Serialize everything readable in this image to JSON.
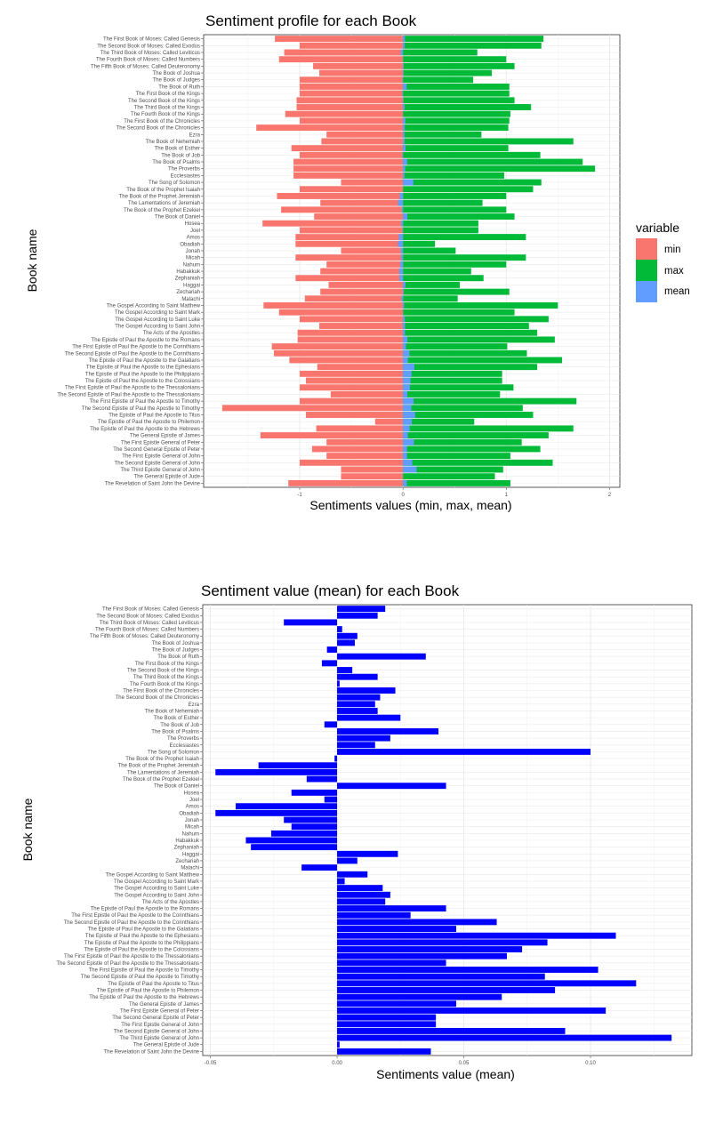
{
  "books": [
    "The First Book of Moses:  Called Genesis",
    "The Second Book of Moses:  Called Exodus",
    "The Third Book of Moses:  Called Leviticus",
    "The Fourth Book of Moses:  Called Numbers",
    "The Fifth Book of Moses:  Called Deuteronomy",
    "The Book of Joshua",
    "The Book of Judges",
    "The Book of Ruth",
    "The First Book of the Kings",
    "The Second Book of the Kings",
    "The Third Book of the Kings",
    "The Fourth Book of the Kings",
    "The First Book of the Chronicles",
    "The Second Book of the Chronicles",
    "Ezra",
    "The Book of Nehemiah",
    "The Book of Esther",
    "The Book of Job",
    "The Book of Psalms",
    "The Proverbs",
    "Ecclesiastes",
    "The Song of Solomon",
    "The Book of the Prophet Isaiah",
    "The Book of the Prophet Jeremiah",
    "The Lamentations of Jeremiah",
    "The Book of the Prophet Ezekiel",
    "The Book of Daniel",
    "Hosea",
    "Joel",
    "Amos",
    "Obadiah",
    "Jonah",
    "Micah",
    "Nahum",
    "Habakkuk",
    "Zephaniah",
    "Haggai",
    "Zechariah",
    "Malachi",
    "The Gospel According to Saint Matthew",
    "The Gospel According to Saint Mark",
    "The Gospel According to Saint Luke",
    "The Gospel According to Saint John",
    "The Acts of the Apostles",
    "The Epistle of Paul the Apostle to the Romans",
    "The First Epistle of Paul the Apostle to the Corinthians",
    "The Second Epistle of Paul the Apostle to the Corinthians",
    "The Epistle of Paul the Apostle to the Galatians",
    "The Epistle of Paul the Apostle to the Ephesians",
    "The Epistle of Paul the Apostle to the Philippians",
    "The Epistle of Paul the Apostle to the Colossians",
    "The First Epistle of Paul the Apostle to the Thessalonians",
    "The Second Epistle of Paul the Apostle to the Thessalonians",
    "The First Epistle of Paul the Apostle to Timothy",
    "The Second Epistle of Paul the Apostle to Timothy",
    "The Epistle of Paul the Apostle to Titus",
    "The Epistle of Paul the Apostle to Philemon",
    "The Epistle of Paul the Apostle to the Hebrews",
    "The General Epistle of James",
    "The First Epistle General of Peter",
    "The Second General Epistle of Peter",
    "The First Epistle General of John",
    "The Second Epistle General of John",
    "The Third Epistle General of John",
    "The General Epistle of Jude",
    "The Revelation of Saint John the Devine"
  ],
  "chart_data": [
    {
      "type": "bar",
      "orientation": "horizontal",
      "title": "Sentiment profile for each Book",
      "xlabel": "Sentiments values (min, max, mean)",
      "ylabel": "Book name",
      "xlim": [
        -1.93,
        2.1
      ],
      "x_ticks": [
        "-1",
        "0",
        "1",
        "2"
      ],
      "grid": true,
      "legend": {
        "title": "variable",
        "position": "right",
        "entries": [
          {
            "label": "min",
            "color": "#F8766D"
          },
          {
            "label": "max",
            "color": "#00BA38"
          },
          {
            "label": "mean",
            "color": "#619CFF"
          }
        ]
      },
      "categories_ref": "books",
      "series": [
        {
          "name": "min",
          "color": "#F8766D",
          "values": [
            -1.24,
            -1.0,
            -1.15,
            -1.2,
            -0.87,
            -0.81,
            -1.0,
            -1.0,
            -1.0,
            -1.03,
            -1.03,
            -1.14,
            -1.0,
            -1.42,
            -0.74,
            -0.79,
            -1.08,
            -1.0,
            -1.06,
            -1.06,
            -1.06,
            -0.6,
            -1.0,
            -1.22,
            -0.8,
            -1.18,
            -0.86,
            -1.36,
            -1.0,
            -1.04,
            -1.04,
            -0.6,
            -1.04,
            -0.74,
            -0.8,
            -1.04,
            -0.72,
            -0.8,
            -0.95,
            -1.35,
            -1.2,
            -1.0,
            -0.81,
            -1.02,
            -1.02,
            -1.27,
            -1.25,
            -1.1,
            -0.83,
            -1.0,
            -0.94,
            -1.0,
            -0.7,
            -1.0,
            -1.75,
            -0.94,
            -0.27,
            -0.84,
            -1.38,
            -0.74,
            -0.88,
            -0.74,
            -1.0,
            -0.6,
            -0.6,
            -1.11
          ]
        },
        {
          "name": "max",
          "color": "#00BA38",
          "values": [
            1.36,
            1.34,
            0.72,
            1.0,
            1.08,
            0.86,
            0.68,
            1.03,
            1.03,
            1.08,
            1.24,
            1.04,
            1.03,
            1.02,
            0.76,
            1.65,
            1.02,
            1.33,
            1.74,
            1.86,
            0.98,
            1.34,
            1.26,
            1.0,
            0.77,
            1.0,
            1.08,
            0.73,
            0.73,
            1.19,
            0.31,
            0.51,
            1.19,
            1.0,
            0.66,
            0.78,
            0.55,
            1.03,
            0.53,
            1.5,
            1.08,
            1.41,
            1.22,
            1.3,
            1.47,
            1.01,
            1.2,
            1.54,
            1.3,
            0.96,
            0.96,
            1.07,
            0.94,
            1.68,
            1.16,
            1.26,
            0.69,
            1.65,
            1.41,
            1.15,
            1.33,
            1.04,
            1.45,
            0.97,
            0.89,
            1.04
          ]
        },
        {
          "name": "mean",
          "color": "#619CFF",
          "values": [
            0.019,
            0.016,
            -0.021,
            0.002,
            0.008,
            0.007,
            -0.004,
            0.035,
            -0.006,
            0.006,
            0.016,
            0.001,
            0.023,
            0.017,
            0.015,
            0.016,
            0.025,
            -0.005,
            0.04,
            0.021,
            0.015,
            0.1,
            -0.001,
            -0.031,
            -0.048,
            -0.012,
            0.043,
            -0.018,
            -0.005,
            -0.04,
            -0.048,
            -0.021,
            -0.018,
            -0.026,
            -0.036,
            -0.034,
            0.024,
            0.008,
            -0.014,
            0.012,
            0.003,
            0.018,
            0.021,
            0.019,
            0.043,
            0.029,
            0.063,
            0.047,
            0.11,
            0.083,
            0.073,
            0.067,
            0.043,
            0.103,
            0.082,
            0.118,
            0.086,
            0.065,
            0.047,
            0.106,
            0.039,
            0.039,
            0.09,
            0.132,
            0.001,
            0.037
          ]
        }
      ]
    },
    {
      "type": "bar",
      "orientation": "horizontal",
      "title": "Sentiment value (mean) for each Book",
      "xlabel": "Sentiments value (mean)",
      "ylabel": "Book name",
      "xlim": [
        -0.053,
        0.14
      ],
      "x_ticks": [
        "-0.05",
        "0.00",
        "0.05",
        "0.10"
      ],
      "grid": true,
      "categories_ref": "books",
      "series": [
        {
          "color": "#0000FF",
          "values": [
            0.019,
            0.016,
            -0.021,
            0.002,
            0.008,
            0.007,
            -0.004,
            0.035,
            -0.006,
            0.006,
            0.016,
            0.001,
            0.023,
            0.017,
            0.015,
            0.016,
            0.025,
            -0.005,
            0.04,
            0.021,
            0.015,
            0.1,
            -0.001,
            -0.031,
            -0.048,
            -0.012,
            0.043,
            -0.018,
            -0.005,
            -0.04,
            -0.048,
            -0.021,
            -0.018,
            -0.026,
            -0.036,
            -0.034,
            0.024,
            0.008,
            -0.014,
            0.012,
            0.003,
            0.018,
            0.021,
            0.019,
            0.043,
            0.029,
            0.063,
            0.047,
            0.11,
            0.083,
            0.073,
            0.067,
            0.043,
            0.103,
            0.082,
            0.118,
            0.086,
            0.065,
            0.047,
            0.106,
            0.039,
            0.039,
            0.09,
            0.132,
            0.001,
            0.037
          ]
        }
      ]
    }
  ]
}
